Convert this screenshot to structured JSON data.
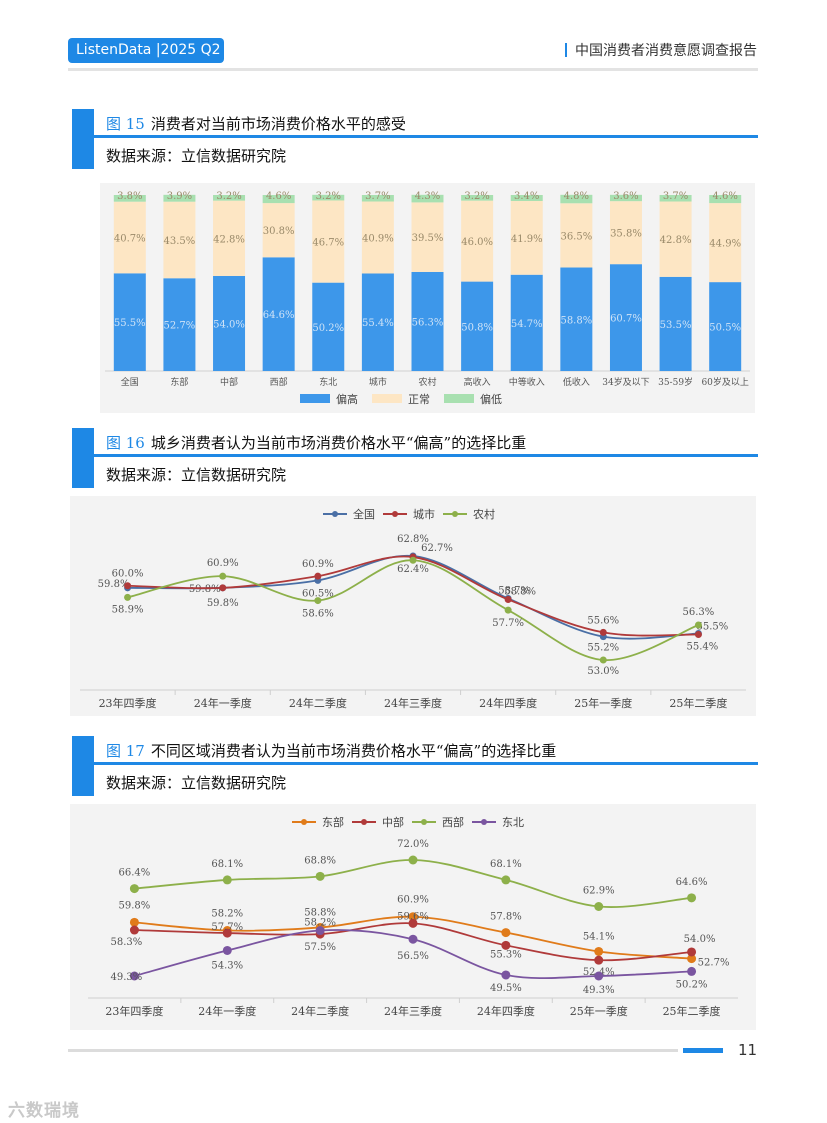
{
  "header": {
    "badge": "ListenData |2025 Q2",
    "title": "中国消费者消费意愿调查报告"
  },
  "fig15": {
    "num": "图 15",
    "title": "消费者对当前市场消费价格水平的感受",
    "source": "数据来源：立信数据研究院",
    "chart_data": {
      "type": "bar",
      "stacked": true,
      "categories": [
        "全国",
        "东部",
        "中部",
        "西部",
        "东北",
        "城市",
        "农村",
        "高收入",
        "中等收入",
        "低收入",
        "34岁及以下",
        "35-59岁",
        "60岁及以上"
      ],
      "series": [
        {
          "name": "偏高",
          "color": "#3d97ea",
          "values": [
            55.5,
            52.7,
            54.0,
            64.6,
            50.2,
            55.4,
            56.3,
            50.8,
            54.7,
            58.8,
            60.7,
            53.5,
            50.5
          ]
        },
        {
          "name": "正常",
          "color": "#fde6c4",
          "values": [
            40.7,
            43.5,
            42.8,
            30.8,
            46.7,
            40.9,
            39.5,
            46.0,
            41.9,
            36.5,
            35.8,
            42.8,
            44.9
          ]
        },
        {
          "name": "偏低",
          "color": "#a8e0b0",
          "values": [
            3.8,
            3.9,
            3.2,
            4.6,
            3.2,
            3.7,
            4.3,
            3.2,
            3.4,
            4.8,
            3.6,
            3.7,
            4.6
          ]
        }
      ],
      "legend": "bottom"
    }
  },
  "fig16": {
    "num": "图 16",
    "title": "城乡消费者认为当前市场消费价格水平“偏高”的选择比重",
    "source": "数据来源：立信数据研究院",
    "chart_data": {
      "type": "line",
      "categories": [
        "23年四季度",
        "24年一季度",
        "24年二季度",
        "24年三季度",
        "24年四季度",
        "25年一季度",
        "25年二季度"
      ],
      "series": [
        {
          "name": "全国",
          "color": "#4a6fa5",
          "values": [
            59.8,
            59.8,
            60.5,
            62.8,
            58.8,
            55.2,
            55.5
          ]
        },
        {
          "name": "城市",
          "color": "#b03a3a",
          "values": [
            60.0,
            59.8,
            60.9,
            62.7,
            58.7,
            55.6,
            55.4
          ]
        },
        {
          "name": "农村",
          "color": "#8db04a",
          "values": [
            58.9,
            60.9,
            58.6,
            62.4,
            57.7,
            53.0,
            56.3
          ]
        }
      ],
      "legend": "top"
    }
  },
  "fig17": {
    "num": "图 17",
    "title": "不同区域消费者认为当前市场消费价格水平“偏高”的选择比重",
    "source": "数据来源：立信数据研究院",
    "chart_data": {
      "type": "line",
      "categories": [
        "23年四季度",
        "24年一季度",
        "24年二季度",
        "24年三季度",
        "24年四季度",
        "25年一季度",
        "25年二季度"
      ],
      "series": [
        {
          "name": "东部",
          "color": "#e07b1a",
          "values": [
            59.8,
            58.2,
            58.8,
            60.9,
            57.8,
            54.1,
            52.7
          ]
        },
        {
          "name": "中部",
          "color": "#b03a3a",
          "values": [
            58.3,
            57.7,
            57.5,
            59.6,
            55.3,
            52.4,
            54.0
          ]
        },
        {
          "name": "西部",
          "color": "#8db04a",
          "values": [
            66.4,
            68.1,
            68.8,
            72.0,
            68.1,
            62.9,
            64.6
          ]
        },
        {
          "name": "东北",
          "color": "#7a55a0",
          "values": [
            49.3,
            54.3,
            58.2,
            56.5,
            49.5,
            49.3,
            50.2
          ]
        }
      ],
      "legend": "top"
    }
  },
  "footer": {
    "page": "11"
  },
  "watermark": "六数瑞境"
}
